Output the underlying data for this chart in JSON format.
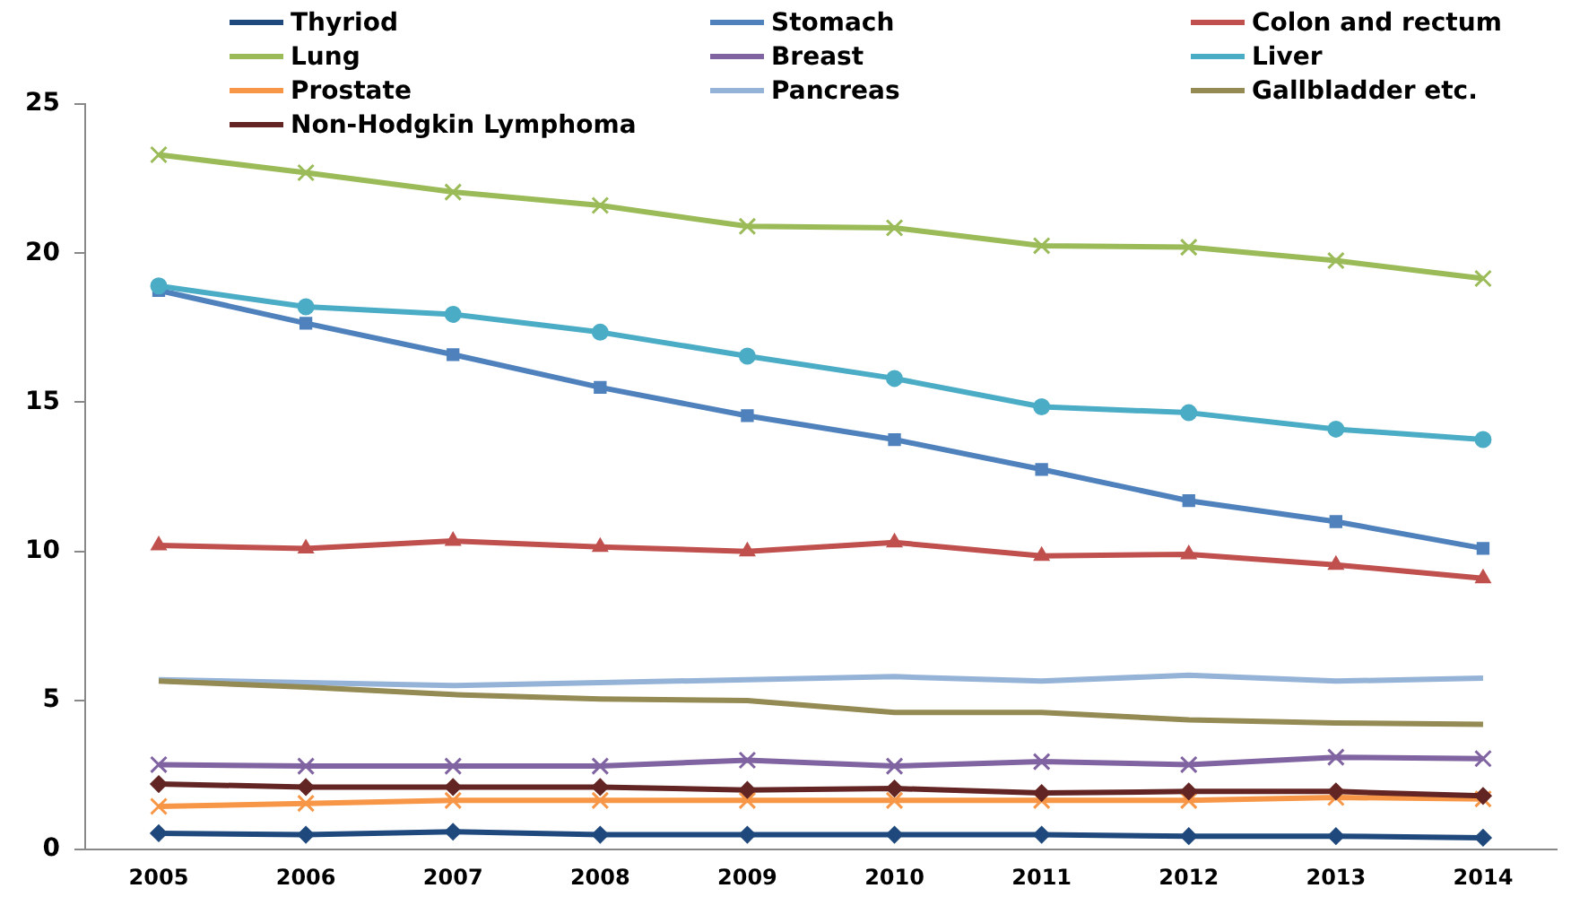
{
  "chart_data": {
    "type": "line",
    "categories": [
      "2005",
      "2006",
      "2007",
      "2008",
      "2009",
      "2010",
      "2011",
      "2012",
      "2013",
      "2014"
    ],
    "ylim": [
      0,
      25
    ],
    "yticks": [
      0,
      5,
      10,
      15,
      20,
      25
    ],
    "grid": false,
    "legend": "top",
    "line_style": "solid",
    "series": [
      {
        "name": "Thyriod",
        "color": "#1f497d",
        "marker": "diamond",
        "values": [
          0.55,
          0.5,
          0.6,
          0.5,
          0.5,
          0.5,
          0.5,
          0.45,
          0.45,
          0.4
        ]
      },
      {
        "name": "Stomach",
        "color": "#4f81bd",
        "marker": "square",
        "values": [
          18.75,
          17.65,
          16.6,
          15.5,
          14.55,
          13.75,
          12.75,
          11.7,
          11.0,
          10.1
        ]
      },
      {
        "name": "Colon and rectum",
        "color": "#c0504d",
        "marker": "triangle",
        "values": [
          10.2,
          10.1,
          10.35,
          10.15,
          10.0,
          10.3,
          9.85,
          9.9,
          9.55,
          9.1
        ]
      },
      {
        "name": "Lung",
        "color": "#9bbb59",
        "marker": "cross",
        "values": [
          23.3,
          22.7,
          22.05,
          21.6,
          20.9,
          20.85,
          20.25,
          20.2,
          19.75,
          19.15
        ]
      },
      {
        "name": "Breast",
        "color": "#8064a2",
        "marker": "cross",
        "values": [
          2.85,
          2.8,
          2.8,
          2.8,
          3.0,
          2.8,
          2.95,
          2.85,
          3.1,
          3.05
        ]
      },
      {
        "name": "Liver",
        "color": "#4bacc6",
        "marker": "circle",
        "values": [
          18.9,
          18.2,
          17.95,
          17.35,
          16.55,
          15.8,
          14.85,
          14.65,
          14.1,
          13.75
        ]
      },
      {
        "name": "Prostate",
        "color": "#f79646",
        "marker": "cross",
        "values": [
          1.45,
          1.55,
          1.65,
          1.65,
          1.65,
          1.65,
          1.65,
          1.65,
          1.75,
          1.7
        ]
      },
      {
        "name": "Pancreas",
        "color": "#95b3d7",
        "marker": "none",
        "values": [
          5.7,
          5.6,
          5.5,
          5.6,
          5.7,
          5.8,
          5.65,
          5.85,
          5.65,
          5.75
        ]
      },
      {
        "name": "Gallbladder etc.",
        "color": "#948a54",
        "marker": "none",
        "values": [
          5.65,
          5.45,
          5.2,
          5.05,
          5.0,
          4.6,
          4.6,
          4.35,
          4.25,
          4.2
        ]
      },
      {
        "name": "Non-Hodgkin Lymphoma",
        "color": "#632523",
        "marker": "diamond",
        "values": [
          2.2,
          2.1,
          2.1,
          2.1,
          2.0,
          2.05,
          1.9,
          1.95,
          1.95,
          1.8
        ]
      }
    ]
  }
}
